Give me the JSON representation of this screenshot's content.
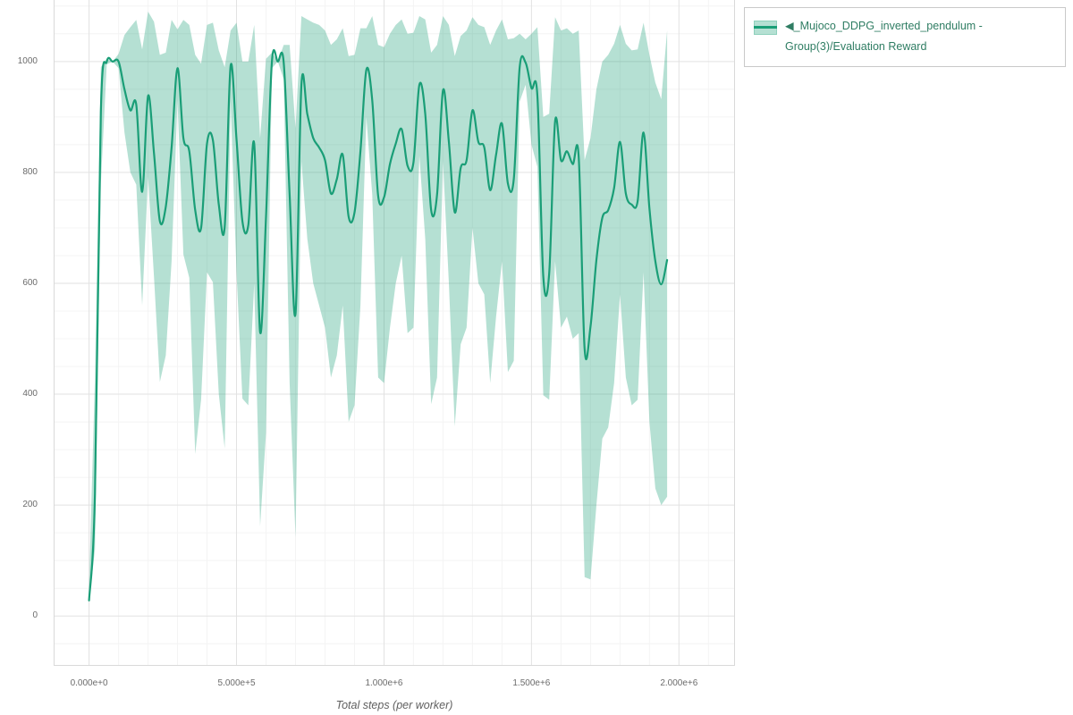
{
  "page": {
    "background": "#ffffff"
  },
  "legend": {
    "text_color": "#2f7d63",
    "border_color": "#c9c9c9"
  },
  "chart_data": {
    "type": "line",
    "title": "",
    "xlabel": "Total steps (per worker)",
    "ylabel": "",
    "grid": true,
    "legend_position": "top-right",
    "x_range": [
      -120000,
      2190000
    ],
    "y_range": [
      -90,
      1111
    ],
    "x_ticks": {
      "values": [
        0,
        500000,
        1000000,
        1500000,
        2000000
      ],
      "labels": [
        "0.000e+0",
        "5.000e+5",
        "1.000e+6",
        "1.500e+6",
        "2.000e+6"
      ]
    },
    "y_ticks": {
      "values": [
        0,
        200,
        400,
        600,
        800,
        1000
      ],
      "labels": [
        "0",
        "200",
        "400",
        "600",
        "800",
        "1000"
      ]
    },
    "series": [
      {
        "name": "◀_Mujoco_DDPG_inverted_pendulum - Group(3)/Evaluation Reward",
        "color": "#1a9e77",
        "band_color": "rgba(31,161,121,0.33)",
        "points_format": [
          "total_steps",
          "band_low",
          "mean",
          "band_high"
        ],
        "points": [
          [
            0,
            24,
            28,
            55
          ],
          [
            20000,
            120,
            220,
            430
          ],
          [
            40000,
            780,
            910,
            990
          ],
          [
            60000,
            995,
            1000,
            1005
          ],
          [
            80000,
            1000,
            1000,
            1000
          ],
          [
            100000,
            988,
            1000,
            1014
          ],
          [
            120000,
            872,
            950,
            1048
          ],
          [
            140000,
            800,
            912,
            1062
          ],
          [
            160000,
            778,
            922,
            1075
          ],
          [
            180000,
            560,
            765,
            1022
          ],
          [
            200000,
            792,
            938,
            1090
          ],
          [
            220000,
            612,
            835,
            1072
          ],
          [
            240000,
            422,
            712,
            1012
          ],
          [
            260000,
            470,
            738,
            1016
          ],
          [
            280000,
            640,
            845,
            1075
          ],
          [
            300000,
            930,
            988,
            1058
          ],
          [
            320000,
            652,
            862,
            1075
          ],
          [
            340000,
            610,
            838,
            1066
          ],
          [
            360000,
            292,
            732,
            1012
          ],
          [
            380000,
            390,
            700,
            996
          ],
          [
            400000,
            620,
            852,
            1066
          ],
          [
            420000,
            602,
            858,
            1070
          ],
          [
            440000,
            400,
            742,
            1020
          ],
          [
            460000,
            302,
            702,
            990
          ],
          [
            480000,
            928,
            992,
            1056
          ],
          [
            500000,
            620,
            860,
            1070
          ],
          [
            520000,
            392,
            712,
            1000
          ],
          [
            540000,
            380,
            705,
            1000
          ],
          [
            560000,
            600,
            852,
            1066
          ],
          [
            580000,
            162,
            512,
            862
          ],
          [
            600000,
            330,
            720,
            1005
          ],
          [
            620000,
            988,
            1000,
            1016
          ],
          [
            640000,
            1000,
            1000,
            1000
          ],
          [
            660000,
            968,
            998,
            1030
          ],
          [
            680000,
            420,
            760,
            1030
          ],
          [
            700000,
            142,
            545,
            880
          ],
          [
            720000,
            820,
            958,
            1082
          ],
          [
            740000,
            680,
            905,
            1076
          ],
          [
            760000,
            600,
            862,
            1070
          ],
          [
            780000,
            560,
            845,
            1066
          ],
          [
            800000,
            520,
            822,
            1056
          ],
          [
            820000,
            430,
            762,
            1030
          ],
          [
            840000,
            470,
            788,
            1040
          ],
          [
            860000,
            560,
            832,
            1060
          ],
          [
            880000,
            350,
            720,
            1010
          ],
          [
            900000,
            380,
            728,
            1012
          ],
          [
            920000,
            560,
            838,
            1060
          ],
          [
            940000,
            900,
            985,
            1060
          ],
          [
            960000,
            760,
            930,
            1082
          ],
          [
            980000,
            430,
            758,
            1030
          ],
          [
            1000000,
            420,
            755,
            1026
          ],
          [
            1020000,
            520,
            815,
            1050
          ],
          [
            1040000,
            600,
            852,
            1066
          ],
          [
            1060000,
            650,
            878,
            1076
          ],
          [
            1080000,
            510,
            812,
            1050
          ],
          [
            1100000,
            520,
            818,
            1052
          ],
          [
            1120000,
            830,
            958,
            1082
          ],
          [
            1140000,
            680,
            905,
            1076
          ],
          [
            1160000,
            382,
            732,
            1016
          ],
          [
            1180000,
            430,
            760,
            1030
          ],
          [
            1200000,
            820,
            948,
            1082
          ],
          [
            1220000,
            600,
            855,
            1066
          ],
          [
            1240000,
            342,
            728,
            1010
          ],
          [
            1260000,
            490,
            808,
            1046
          ],
          [
            1280000,
            520,
            822,
            1056
          ],
          [
            1300000,
            700,
            912,
            1080
          ],
          [
            1320000,
            600,
            855,
            1066
          ],
          [
            1340000,
            580,
            845,
            1062
          ],
          [
            1360000,
            420,
            768,
            1030
          ],
          [
            1380000,
            540,
            832,
            1056
          ],
          [
            1400000,
            640,
            888,
            1076
          ],
          [
            1420000,
            440,
            780,
            1040
          ],
          [
            1440000,
            460,
            788,
            1042
          ],
          [
            1460000,
            928,
            990,
            1050
          ],
          [
            1480000,
            958,
            998,
            1040
          ],
          [
            1500000,
            850,
            952,
            1050
          ],
          [
            1520000,
            810,
            938,
            1062
          ],
          [
            1540000,
            398,
            612,
            900
          ],
          [
            1560000,
            390,
            618,
            906
          ],
          [
            1580000,
            640,
            892,
            1080
          ],
          [
            1600000,
            520,
            822,
            1056
          ],
          [
            1620000,
            540,
            838,
            1060
          ],
          [
            1640000,
            500,
            815,
            1050
          ],
          [
            1660000,
            510,
            828,
            1056
          ],
          [
            1680000,
            70,
            482,
            822
          ],
          [
            1700000,
            66,
            522,
            862
          ],
          [
            1720000,
            200,
            642,
            950
          ],
          [
            1740000,
            320,
            718,
            1000
          ],
          [
            1760000,
            340,
            732,
            1012
          ],
          [
            1780000,
            420,
            772,
            1032
          ],
          [
            1800000,
            580,
            855,
            1066
          ],
          [
            1820000,
            430,
            762,
            1032
          ],
          [
            1840000,
            380,
            742,
            1020
          ],
          [
            1860000,
            390,
            748,
            1022
          ],
          [
            1880000,
            620,
            872,
            1070
          ],
          [
            1900000,
            350,
            735,
            1012
          ],
          [
            1920000,
            230,
            640,
            962
          ],
          [
            1940000,
            200,
            598,
            932
          ],
          [
            1960000,
            215,
            642,
            1056
          ]
        ]
      }
    ]
  }
}
